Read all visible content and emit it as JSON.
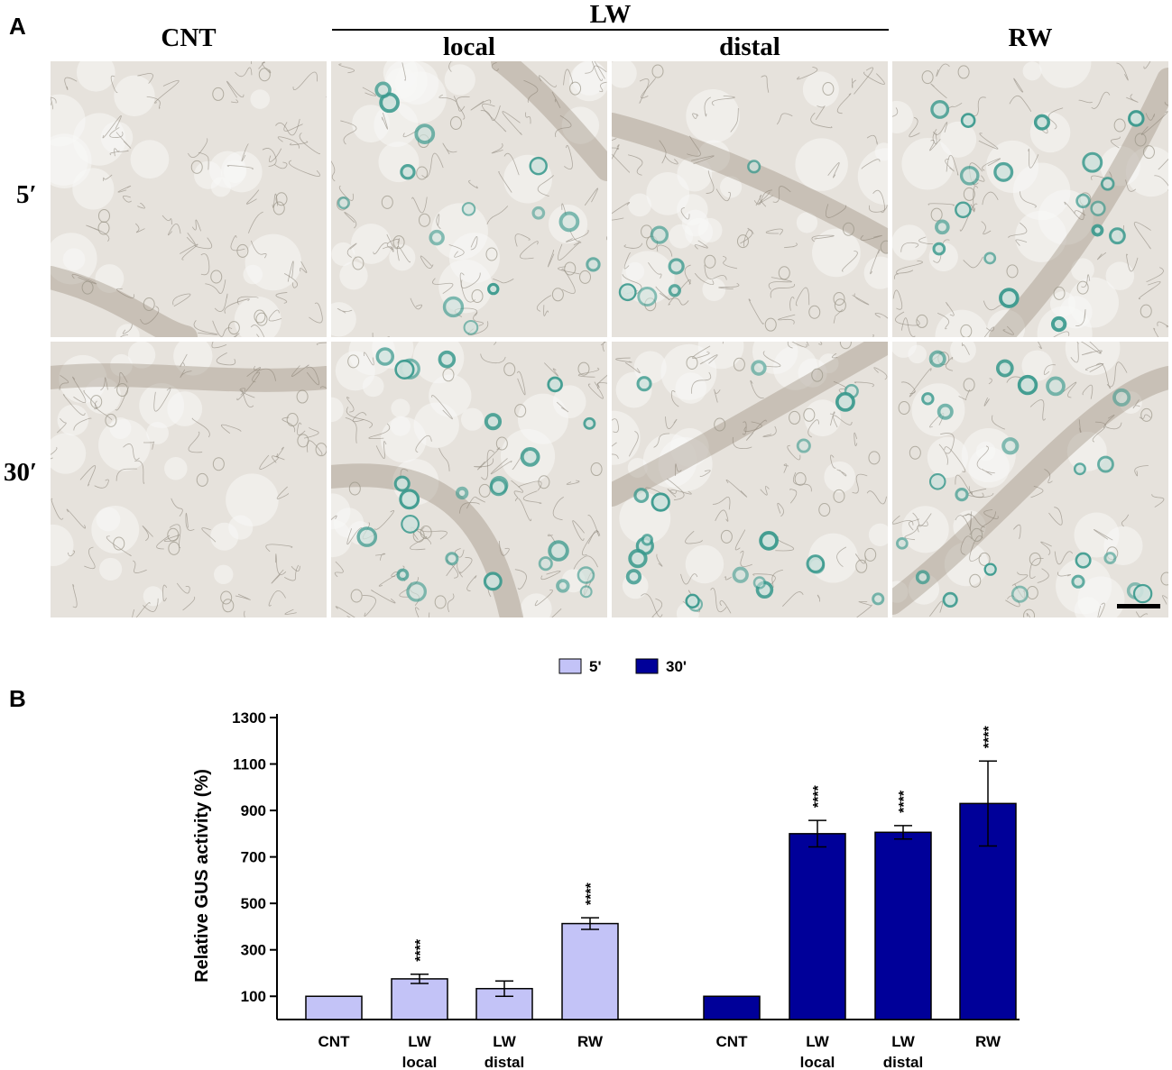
{
  "panel_a": {
    "letter": "A",
    "group_label": "LW",
    "columns": [
      "CNT",
      "local",
      "distal",
      "RW"
    ],
    "rows": [
      "5′",
      "30′"
    ]
  },
  "panel_b": {
    "letter": "B"
  },
  "colors": {
    "series_5": "#c3c3f7",
    "series_30": "#000099",
    "gus_stain": "#3a9a8e",
    "tissue": "#e6e2dc",
    "vein": "#8f8070"
  },
  "chart_data": {
    "type": "bar",
    "ylabel": "Relative GUS activity (%)",
    "xlabel": "",
    "ylim": [
      0,
      1300
    ],
    "yticks": [
      100,
      300,
      500,
      700,
      900,
      1100,
      1300
    ],
    "legend_position": "top-center",
    "groups": [
      {
        "name": "5'",
        "bars": [
          {
            "label": [
              "CNT"
            ],
            "value": 100,
            "err": null,
            "sig": ""
          },
          {
            "label": [
              "LW",
              "local"
            ],
            "value": 175,
            "err": 20,
            "sig": "****"
          },
          {
            "label": [
              "LW",
              "distal"
            ],
            "value": 133,
            "err": 33,
            "sig": ""
          },
          {
            "label": [
              "RW"
            ],
            "value": 413,
            "err": 25,
            "sig": "****"
          }
        ]
      },
      {
        "name": "30'",
        "bars": [
          {
            "label": [
              "CNT"
            ],
            "value": 100,
            "err": null,
            "sig": ""
          },
          {
            "label": [
              "LW",
              "local"
            ],
            "value": 800,
            "err": 57,
            "sig": "****"
          },
          {
            "label": [
              "LW",
              "distal"
            ],
            "value": 806,
            "err": 29,
            "sig": "****"
          },
          {
            "label": [
              "RW"
            ],
            "value": 930,
            "err": 183,
            "sig": "****"
          }
        ]
      }
    ]
  }
}
